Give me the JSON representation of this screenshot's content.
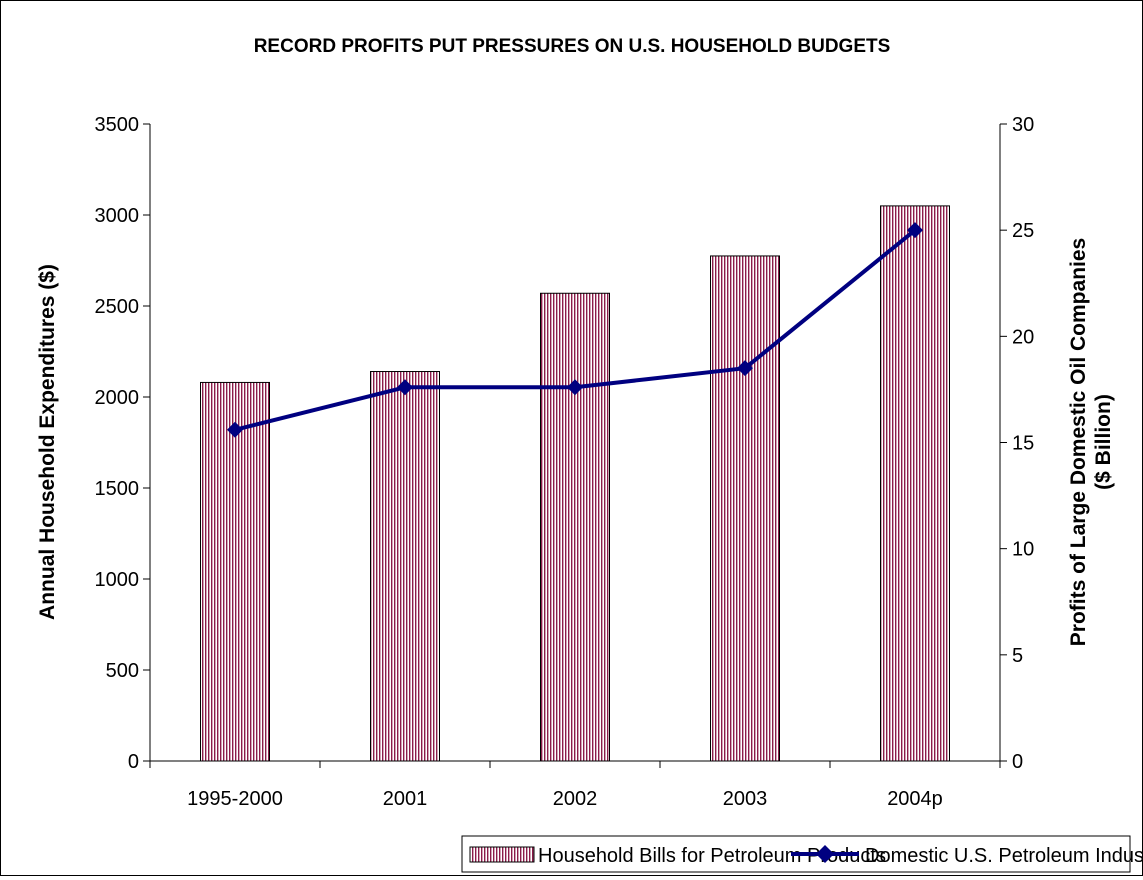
{
  "chart_data": {
    "type": "bar",
    "title": "RECORD PROFITS PUT PRESSURES ON U.S. HOUSEHOLD BUDGETS",
    "categories": [
      "1995-2000",
      "2001",
      "2002",
      "2003",
      "2004p"
    ],
    "y_left": {
      "label": "Annual Household Expenditures ($)",
      "ylim": [
        0,
        3500
      ],
      "ticks": [
        "0",
        "500",
        "1000",
        "1500",
        "2000",
        "2500",
        "3000",
        "3500"
      ]
    },
    "y_right": {
      "label_line1": "Profits of Large Domestic Oil Companies",
      "label_line2": "($ Billion)",
      "ylim": [
        0,
        30
      ],
      "ticks": [
        "0",
        "5",
        "10",
        "15",
        "20",
        "25",
        "30"
      ]
    },
    "series": [
      {
        "name": "Household Bills for Petroleum Products",
        "type": "bar",
        "axis": "left",
        "values": [
          2080,
          2140,
          2570,
          2775,
          3050
        ]
      },
      {
        "name": "Domestic U.S. Petroleum Industry Profits",
        "type": "line",
        "axis": "right",
        "values": [
          15.6,
          17.6,
          17.6,
          18.5,
          25.0
        ]
      }
    ],
    "grid": false,
    "legend_position": "bottom",
    "colors": {
      "bar_fill": "#ffffff",
      "bar_stripe": "#8c1c4a",
      "line": "#000080"
    }
  }
}
